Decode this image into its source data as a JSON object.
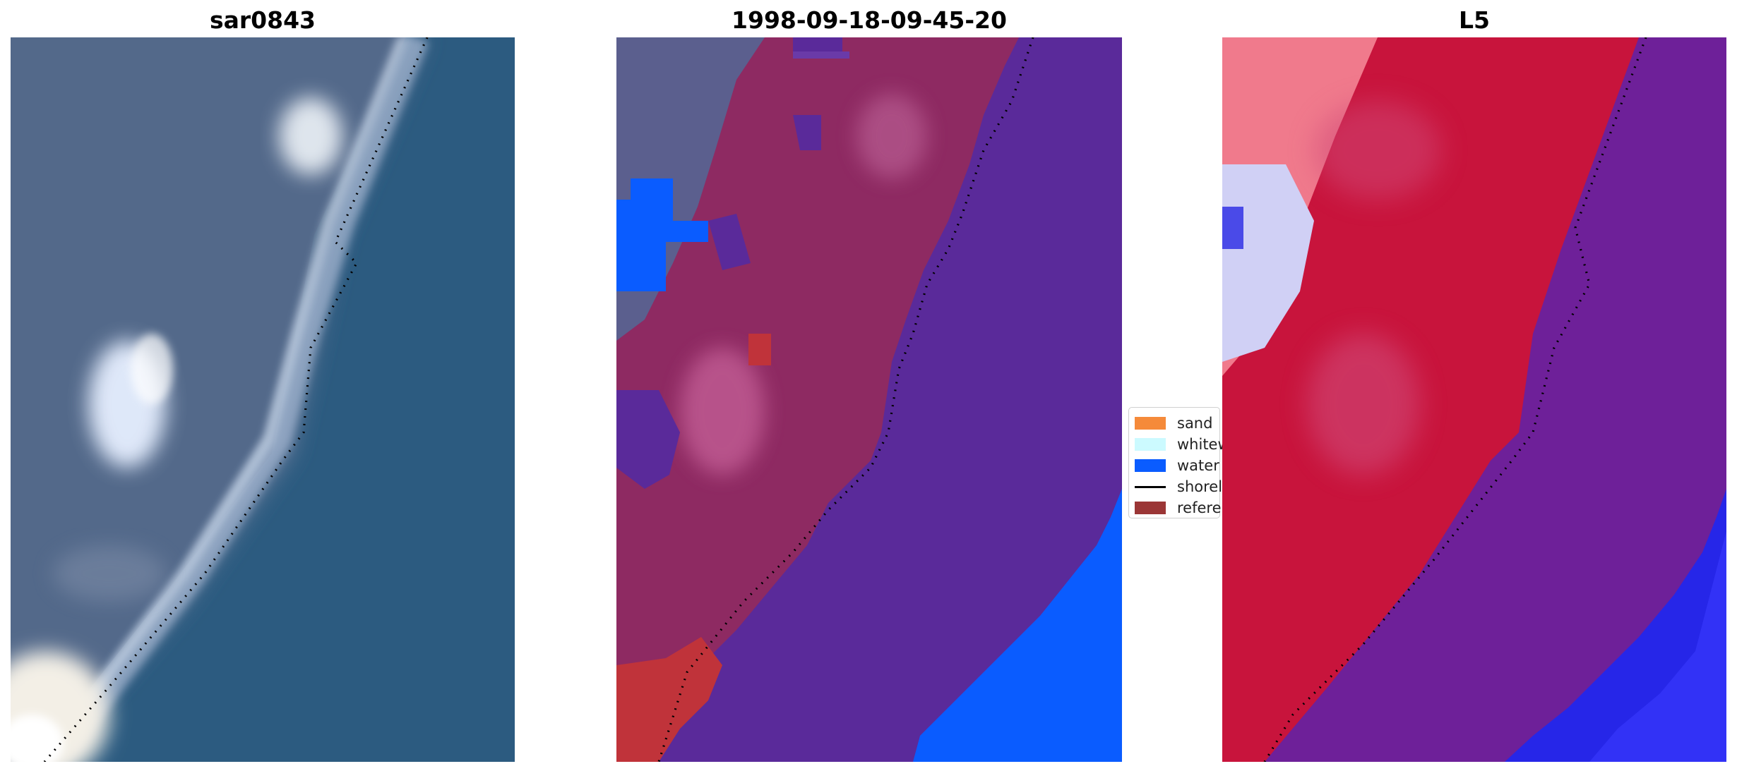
{
  "panels": [
    {
      "title": "sar0843"
    },
    {
      "title": "1998-09-18-09-45-20"
    },
    {
      "title": "L5"
    }
  ],
  "legend": {
    "items": [
      {
        "label": "sand",
        "color": "#f58a3a",
        "kind": "patch"
      },
      {
        "label": "whitewater",
        "color": "#ccfaff",
        "kind": "patch"
      },
      {
        "label": "water",
        "color": "#0a5cff",
        "kind": "patch"
      },
      {
        "label": "shoreline",
        "color": "#000000",
        "kind": "line"
      },
      {
        "label": "reference shoreline",
        "color": "#9b3636",
        "kind": "patch"
      }
    ]
  },
  "colors": {
    "rgb_water": "#2f5f86",
    "rgb_land": "#56708e",
    "class_water_overlay": "#5a2a9a",
    "class_land_overlay": "#8e2a62",
    "class_water_blue": "#0a5cff",
    "class_red": "#c0333a",
    "l5_land": "#c8143c",
    "l5_water": "#6e2099",
    "l5_blue": "#2626e8"
  }
}
